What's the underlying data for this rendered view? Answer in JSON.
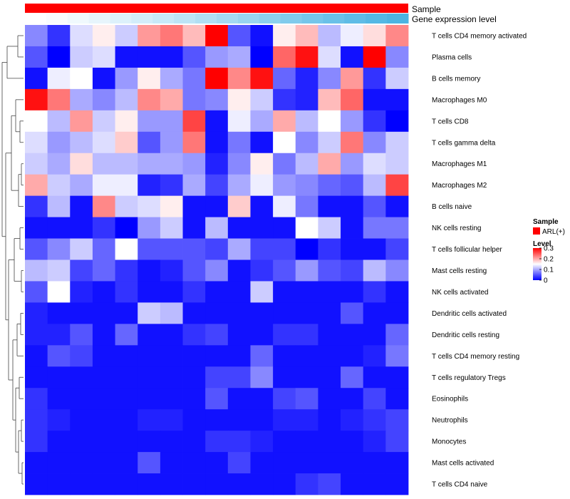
{
  "chart_data": {
    "type": "heatmap",
    "annotation_rows": [
      {
        "name": "Sample",
        "color": "#ff0000"
      },
      {
        "name": "Gene expression level",
        "colors": [
          "#ffffff",
          "#f9fcfe",
          "#f0f9fd",
          "#e7f5fc",
          "#ddf1fb",
          "#d3edfa",
          "#c8e9f8",
          "#bde4f6",
          "#b1dff4",
          "#a5daf2",
          "#99d5f0",
          "#8dd0ee",
          "#81cbec",
          "#75c6ea",
          "#6ac1e8",
          "#5fbce6",
          "#55b8e4",
          "#4db4e2"
        ]
      }
    ],
    "rows": [
      "T cells CD4 memory activated",
      "Plasma cells",
      "B cells memory",
      "Macrophages M0",
      "T cells CD8",
      "T cells gamma delta",
      "Macrophages M1",
      "Macrophages M2",
      "B cells naive",
      "NK cells resting",
      "T cells follicular helper",
      "Mast cells resting",
      "NK cells activated",
      "Dendritic cells activated",
      "Dendritic cells resting",
      "T cells CD4 memory resting",
      "T cells regulatory  Tregs",
      "Eosinophils",
      "Neutrophils",
      "Monocytes",
      "Mast cells activated",
      "T cells CD4 naive"
    ],
    "values": [
      [
        0.08,
        0.03,
        0.13,
        0.16,
        0.12,
        0.21,
        0.23,
        0.19,
        0.3,
        0.05,
        0.01,
        0.16,
        0.19,
        0.11,
        0.14,
        0.17,
        0.22
      ],
      [
        0.05,
        0.0,
        0.12,
        0.13,
        0.01,
        0.01,
        0.01,
        0.05,
        0.09,
        0.1,
        0.0,
        0.24,
        0.29,
        0.13,
        0.01,
        0.3,
        0.08
      ],
      [
        0.01,
        0.14,
        0.15,
        0.01,
        0.09,
        0.16,
        0.1,
        0.07,
        0.3,
        0.22,
        0.29,
        0.06,
        0.02,
        0.08,
        0.21,
        0.03,
        0.12
      ],
      [
        0.29,
        0.23,
        0.1,
        0.08,
        0.11,
        0.22,
        0.2,
        0.07,
        0.08,
        0.16,
        0.12,
        0.03,
        0.02,
        0.19,
        0.24,
        0.01,
        0.01
      ],
      [
        0.15,
        0.11,
        0.21,
        0.12,
        0.16,
        0.09,
        0.09,
        0.26,
        0.01,
        0.14,
        0.1,
        0.2,
        0.11,
        0.15,
        0.09,
        0.03,
        0.0
      ],
      [
        0.13,
        0.09,
        0.11,
        0.13,
        0.18,
        0.05,
        0.09,
        0.23,
        0.01,
        0.07,
        0.01,
        0.15,
        0.08,
        0.12,
        0.23,
        0.08,
        0.12
      ],
      [
        0.12,
        0.1,
        0.17,
        0.11,
        0.11,
        0.1,
        0.1,
        0.09,
        0.02,
        0.08,
        0.16,
        0.07,
        0.11,
        0.2,
        0.09,
        0.13,
        0.12
      ],
      [
        0.2,
        0.12,
        0.1,
        0.14,
        0.14,
        0.02,
        0.03,
        0.1,
        0.04,
        0.1,
        0.14,
        0.09,
        0.08,
        0.06,
        0.05,
        0.11,
        0.26
      ],
      [
        0.03,
        0.11,
        0.01,
        0.22,
        0.12,
        0.13,
        0.16,
        0.01,
        0.01,
        0.18,
        0.01,
        0.14,
        0.07,
        0.01,
        0.01,
        0.05,
        0.01
      ],
      [
        0.01,
        0.01,
        0.01,
        0.03,
        0.0,
        0.09,
        0.12,
        0.01,
        0.11,
        0.01,
        0.01,
        0.01,
        0.15,
        0.12,
        0.01,
        0.07,
        0.07
      ],
      [
        0.05,
        0.08,
        0.12,
        0.06,
        0.15,
        0.05,
        0.05,
        0.05,
        0.04,
        0.1,
        0.04,
        0.04,
        0.0,
        0.03,
        0.01,
        0.01,
        0.04
      ],
      [
        0.11,
        0.12,
        0.04,
        0.06,
        0.03,
        0.01,
        0.02,
        0.05,
        0.08,
        0.01,
        0.03,
        0.05,
        0.09,
        0.05,
        0.04,
        0.11,
        0.08
      ],
      [
        0.05,
        0.15,
        0.02,
        0.01,
        0.03,
        0.01,
        0.01,
        0.03,
        0.01,
        0.01,
        0.12,
        0.01,
        0.01,
        0.01,
        0.01,
        0.03,
        0.01
      ],
      [
        0.02,
        0.01,
        0.01,
        0.01,
        0.01,
        0.12,
        0.11,
        0.01,
        0.01,
        0.01,
        0.01,
        0.01,
        0.01,
        0.01,
        0.05,
        0.01,
        0.01
      ],
      [
        0.02,
        0.02,
        0.05,
        0.01,
        0.06,
        0.01,
        0.01,
        0.03,
        0.04,
        0.01,
        0.01,
        0.03,
        0.03,
        0.01,
        0.01,
        0.01,
        0.06
      ],
      [
        0.01,
        0.05,
        0.04,
        0.01,
        0.01,
        0.01,
        0.01,
        0.01,
        0.01,
        0.01,
        0.06,
        0.01,
        0.01,
        0.01,
        0.01,
        0.02,
        0.07
      ],
      [
        0.01,
        0.01,
        0.01,
        0.01,
        0.01,
        0.01,
        0.01,
        0.01,
        0.04,
        0.04,
        0.08,
        0.01,
        0.01,
        0.01,
        0.06,
        0.01,
        0.01
      ],
      [
        0.03,
        0.01,
        0.01,
        0.01,
        0.01,
        0.01,
        0.01,
        0.01,
        0.05,
        0.01,
        0.01,
        0.04,
        0.05,
        0.01,
        0.01,
        0.04,
        0.01
      ],
      [
        0.03,
        0.02,
        0.01,
        0.01,
        0.01,
        0.02,
        0.02,
        0.01,
        0.01,
        0.01,
        0.01,
        0.02,
        0.02,
        0.01,
        0.02,
        0.03,
        0.04
      ],
      [
        0.03,
        0.01,
        0.01,
        0.01,
        0.01,
        0.01,
        0.01,
        0.01,
        0.03,
        0.03,
        0.02,
        0.01,
        0.01,
        0.01,
        0.01,
        0.02,
        0.04
      ],
      [
        0.01,
        0.01,
        0.01,
        0.01,
        0.01,
        0.05,
        0.01,
        0.01,
        0.01,
        0.04,
        0.01,
        0.01,
        0.01,
        0.01,
        0.01,
        0.01,
        0.01
      ],
      [
        0.01,
        0.01,
        0.01,
        0.01,
        0.01,
        0.01,
        0.01,
        0.01,
        0.01,
        0.01,
        0.01,
        0.01,
        0.03,
        0.04,
        0.01,
        0.01,
        0.01
      ]
    ],
    "color_scale": {
      "min": 0,
      "mid": 0.15,
      "max": 0.3,
      "low": "#0000ff",
      "mid_color": "#ffffff",
      "high": "#ff0000"
    },
    "legend": {
      "sample_title": "Sample",
      "sample_entry": "ARL(+)",
      "level_title": "Level",
      "ticks": [
        "0.3",
        "0.2",
        "0.1",
        "0"
      ],
      "tick_values": [
        0.3,
        0.2,
        0.1,
        0
      ]
    }
  }
}
